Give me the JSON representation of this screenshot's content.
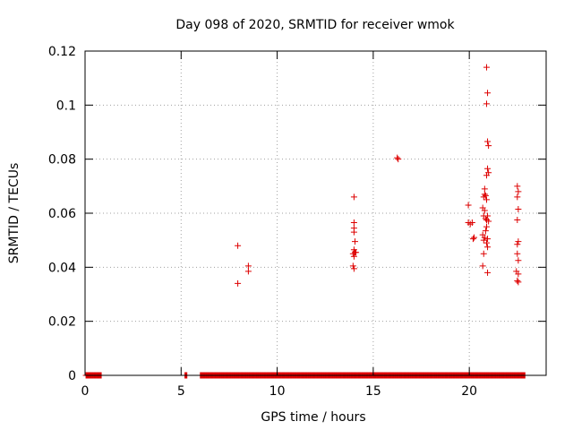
{
  "chart_data": {
    "type": "scatter",
    "title": "Day 098 of 2020, SRMTID for receiver wmok",
    "xlabel": "GPS time / hours",
    "ylabel": "SRMTID / TECUs",
    "xlim": [
      0,
      24
    ],
    "ylim": [
      0,
      0.12
    ],
    "xticks": [
      0,
      5,
      10,
      15,
      20
    ],
    "xtick_labels": [
      "0",
      "5",
      "10",
      "15",
      "20"
    ],
    "yticks": [
      0,
      0.02,
      0.04,
      0.06,
      0.08,
      0.1,
      0.12
    ],
    "ytick_labels": [
      "0",
      "0.02",
      "0.04",
      "0.06",
      "0.08",
      "0.1",
      "0.12"
    ],
    "grid": true,
    "marker": "+",
    "color": "#dd0000",
    "baseline_ranges": [
      [
        0.05,
        0.85
      ],
      [
        5.2,
        5.3
      ],
      [
        6.0,
        22.9
      ]
    ],
    "baseline_step": 0.033,
    "points": [
      [
        7.95,
        0.048
      ],
      [
        7.95,
        0.034
      ],
      [
        8.5,
        0.0405
      ],
      [
        8.5,
        0.0385
      ],
      [
        14.0,
        0.066
      ],
      [
        14.0,
        0.0565
      ],
      [
        14.0,
        0.0545
      ],
      [
        14.0,
        0.053
      ],
      [
        14.05,
        0.0495
      ],
      [
        14.0,
        0.0465
      ],
      [
        14.05,
        0.0455
      ],
      [
        13.95,
        0.045
      ],
      [
        14.0,
        0.044
      ],
      [
        14.1,
        0.0455
      ],
      [
        13.95,
        0.0405
      ],
      [
        14.0,
        0.0395
      ],
      [
        16.25,
        0.0805
      ],
      [
        16.3,
        0.08
      ],
      [
        19.95,
        0.063
      ],
      [
        19.95,
        0.0565
      ],
      [
        20.05,
        0.056
      ],
      [
        20.15,
        0.0565
      ],
      [
        20.2,
        0.0505
      ],
      [
        20.25,
        0.051
      ],
      [
        20.9,
        0.114
      ],
      [
        20.95,
        0.1045
      ],
      [
        20.9,
        0.1005
      ],
      [
        20.95,
        0.0865
      ],
      [
        21.0,
        0.085
      ],
      [
        20.95,
        0.0765
      ],
      [
        21.0,
        0.075
      ],
      [
        20.9,
        0.074
      ],
      [
        20.8,
        0.069
      ],
      [
        20.8,
        0.067
      ],
      [
        20.85,
        0.0665
      ],
      [
        20.75,
        0.066
      ],
      [
        20.9,
        0.065
      ],
      [
        20.7,
        0.062
      ],
      [
        20.8,
        0.061
      ],
      [
        20.75,
        0.059
      ],
      [
        20.85,
        0.058
      ],
      [
        20.9,
        0.0575
      ],
      [
        20.95,
        0.059
      ],
      [
        21.0,
        0.057
      ],
      [
        20.9,
        0.055
      ],
      [
        20.85,
        0.0535
      ],
      [
        20.7,
        0.052
      ],
      [
        20.8,
        0.051
      ],
      [
        20.95,
        0.0505
      ],
      [
        20.75,
        0.05
      ],
      [
        20.9,
        0.049
      ],
      [
        20.95,
        0.0475
      ],
      [
        20.75,
        0.045
      ],
      [
        20.7,
        0.0405
      ],
      [
        20.95,
        0.038
      ],
      [
        22.5,
        0.07
      ],
      [
        22.55,
        0.068
      ],
      [
        22.5,
        0.066
      ],
      [
        22.55,
        0.0615
      ],
      [
        22.5,
        0.0575
      ],
      [
        22.55,
        0.0495
      ],
      [
        22.5,
        0.0485
      ],
      [
        22.5,
        0.045
      ],
      [
        22.55,
        0.0425
      ],
      [
        22.45,
        0.0385
      ],
      [
        22.55,
        0.0375
      ],
      [
        22.5,
        0.035
      ],
      [
        22.55,
        0.0345
      ]
    ]
  }
}
